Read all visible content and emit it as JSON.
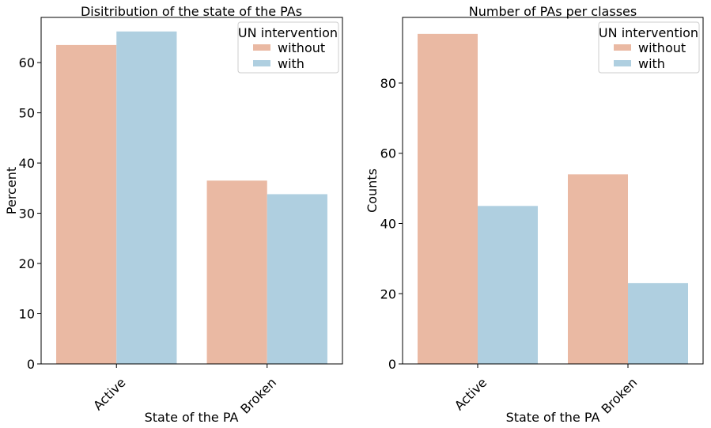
{
  "chart_data": [
    {
      "type": "bar",
      "title": "Disitribution of the state of the PAs",
      "xlabel": "State of the PA",
      "ylabel": "Percent",
      "categories": [
        "Active",
        "Broken"
      ],
      "yticks": [
        "0",
        "10",
        "20",
        "30",
        "40",
        "50",
        "60"
      ],
      "ylim": [
        0,
        69
      ],
      "grid": false,
      "legend": {
        "title": "UN intervention",
        "position": "top-right",
        "entries": [
          "without",
          "with"
        ]
      },
      "series": [
        {
          "name": "without",
          "color": "#eab9a3",
          "values": [
            63.5,
            36.5
          ]
        },
        {
          "name": "with",
          "color": "#afcfe0",
          "values": [
            66.2,
            33.8
          ]
        }
      ]
    },
    {
      "type": "bar",
      "title": "Number of PAs per classes",
      "xlabel": "State of the PA",
      "ylabel": "Counts",
      "categories": [
        "Active",
        "Broken"
      ],
      "yticks": [
        "0",
        "20",
        "40",
        "60",
        "80"
      ],
      "ylim": [
        0,
        98.7
      ],
      "grid": false,
      "legend": {
        "title": "UN intervention",
        "position": "top-right",
        "entries": [
          "without",
          "with"
        ]
      },
      "series": [
        {
          "name": "without",
          "color": "#eab9a3",
          "values": [
            94,
            54
          ]
        },
        {
          "name": "with",
          "color": "#afcfe0",
          "values": [
            45,
            23
          ]
        }
      ]
    }
  ]
}
